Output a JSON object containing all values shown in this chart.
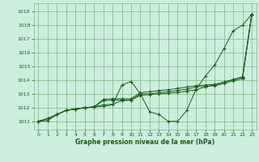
{
  "title": "Graphe pression niveau de la mer (hPa)",
  "background_color": "#cceedd",
  "grid_color": "#7ab87a",
  "line_color": "#1a5c1a",
  "xlim": [
    -0.5,
    23.5
  ],
  "ylim": [
    1010.4,
    1019.6
  ],
  "yticks": [
    1011,
    1012,
    1013,
    1014,
    1015,
    1016,
    1017,
    1018,
    1019
  ],
  "xticks": [
    0,
    1,
    2,
    3,
    4,
    5,
    6,
    7,
    8,
    9,
    10,
    11,
    12,
    13,
    14,
    15,
    16,
    17,
    18,
    19,
    20,
    21,
    22,
    23
  ],
  "s1": [
    1011.0,
    1011.2,
    1011.5,
    1011.8,
    1011.9,
    1012.0,
    1012.05,
    1012.1,
    1012.2,
    1013.65,
    1013.9,
    1013.0,
    1011.7,
    1011.5,
    1011.0,
    1011.0,
    1011.8,
    1013.35,
    1014.3,
    1015.1,
    1016.3,
    1017.6,
    1018.0,
    1018.8
  ],
  "s2": [
    1011.0,
    1011.2,
    1011.5,
    1011.8,
    1011.9,
    1012.0,
    1012.05,
    1012.2,
    1012.25,
    1012.5,
    1012.55,
    1012.9,
    1012.95,
    1013.0,
    1013.05,
    1013.1,
    1013.2,
    1013.3,
    1013.5,
    1013.65,
    1013.85,
    1014.05,
    1014.2,
    1018.8
  ],
  "s3": [
    1011.0,
    1011.2,
    1011.5,
    1011.8,
    1011.9,
    1012.0,
    1012.05,
    1012.5,
    1012.55,
    1012.55,
    1012.55,
    1013.0,
    1013.0,
    1013.1,
    1013.15,
    1013.25,
    1013.35,
    1013.5,
    1013.55,
    1013.6,
    1013.75,
    1013.95,
    1014.1,
    1018.8
  ],
  "s4": [
    1011.0,
    1011.05,
    1011.5,
    1011.8,
    1011.9,
    1012.0,
    1012.05,
    1012.6,
    1012.65,
    1012.65,
    1012.65,
    1013.1,
    1013.15,
    1013.25,
    1013.3,
    1013.4,
    1013.5,
    1013.6,
    1013.65,
    1013.7,
    1013.85,
    1014.05,
    1014.25,
    1018.8
  ]
}
